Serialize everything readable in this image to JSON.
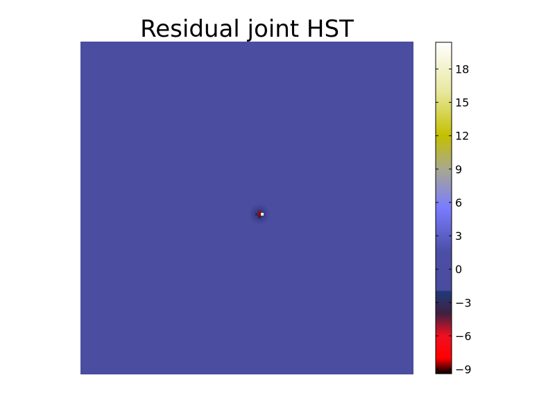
{
  "chart_data": {
    "type": "heatmap",
    "title": "Residual joint HST",
    "xlabel": "",
    "ylabel": "",
    "axes_visible": false,
    "background_value": -0.5,
    "colorbar": {
      "vmin": -9.4,
      "vmax": 20.4,
      "ticks": [
        -9,
        -6,
        -3,
        0,
        3,
        6,
        9,
        12,
        15,
        18
      ],
      "tick_labels": [
        "−9",
        "−6",
        "−3",
        "0",
        "3",
        "6",
        "9",
        "12",
        "15",
        "18"
      ],
      "placement": "right",
      "colormap_stops": [
        {
          "value": -9.4,
          "color": "#000000"
        },
        {
          "value": -8.0,
          "color": "#ff0000"
        },
        {
          "value": -6.0,
          "color": "#f01020"
        },
        {
          "value": -4.0,
          "color": "#402040"
        },
        {
          "value": -2.0,
          "color": "#1f3a7a"
        },
        {
          "value": -1.9,
          "color": "#4a4c9e"
        },
        {
          "value": 1.5,
          "color": "#4b4ea4"
        },
        {
          "value": 5.5,
          "color": "#7a7cff"
        },
        {
          "value": 9.0,
          "color": "#a8a890"
        },
        {
          "value": 12.0,
          "color": "#c4c000"
        },
        {
          "value": 16.0,
          "color": "#e8e8a0"
        },
        {
          "value": 20.4,
          "color": "#ffffff"
        }
      ]
    },
    "source_features": [
      {
        "row": 0,
        "col": 0,
        "value": -8.5
      },
      {
        "row": 0,
        "col": 1,
        "value": 18.0
      },
      {
        "row": 0,
        "col": -1,
        "value": -3.5
      },
      {
        "row": -1,
        "col": 0,
        "value": -4.5
      },
      {
        "row": 1,
        "col": 0,
        "value": -4.0
      }
    ]
  }
}
